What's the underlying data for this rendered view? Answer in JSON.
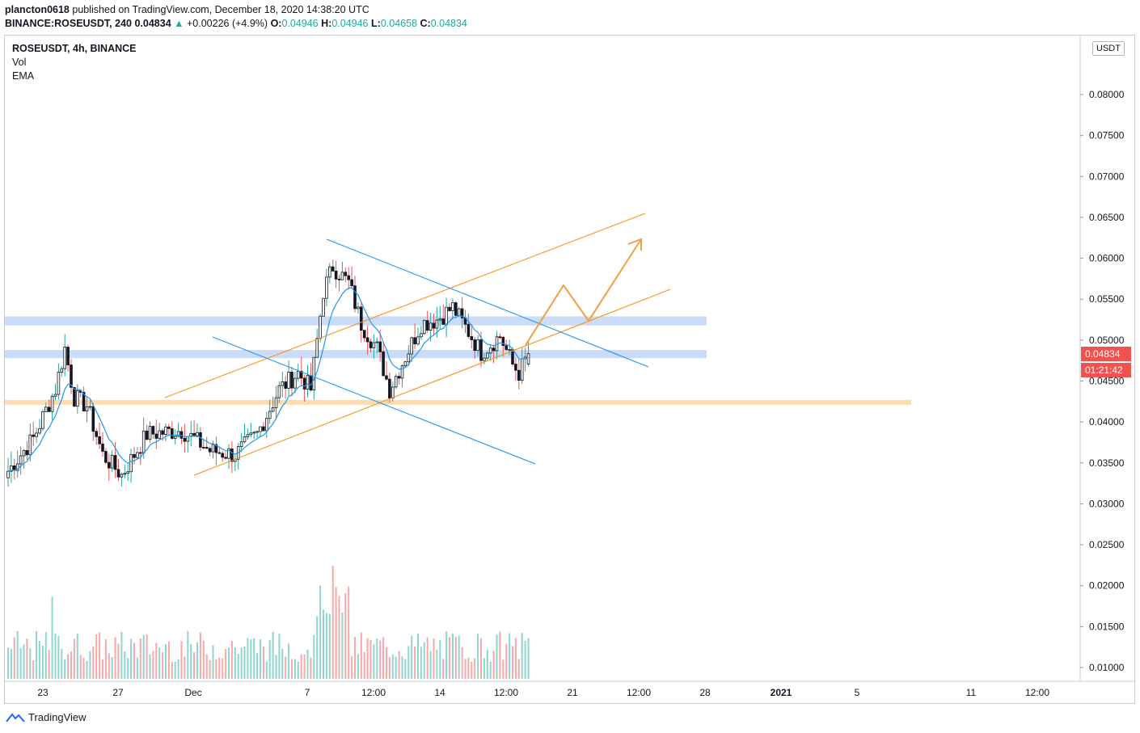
{
  "header": {
    "publisher": "plancton0618",
    "published_text": "published on TradingView.com, December 18, 2020 14:38:20 UTC",
    "symbol_line": "BINANCE:ROSEUSDT, 240",
    "last": "0.04834",
    "change": "+0.00226 (+4.9%)",
    "o_label": "O:",
    "o": "0.04946",
    "h_label": "H:",
    "h": "0.04946",
    "l_label": "L:",
    "l": "0.04658",
    "c_label": "C:",
    "c": "0.04834"
  },
  "legend": {
    "title": "ROSEUSDT, 4h, BINANCE",
    "vol": "Vol",
    "ema": "EMA"
  },
  "price_axis": {
    "currency": "USDT",
    "last_price": "0.04834",
    "countdown": "01:21:42"
  },
  "footer": {
    "brand": "TradingView"
  },
  "colors": {
    "up": "#26a69a",
    "down": "#ef5350",
    "candle_body": "#131722",
    "ema": "#2196f3",
    "channel": "#f7931a",
    "zone_blue": "#c5d8f8",
    "zone_orange": "#fdd8a8",
    "vol_up": "#8fd6cf",
    "vol_down": "#f5a9a9"
  },
  "chart_data": {
    "type": "candlestick",
    "title": "ROSEUSDT, 4h, BINANCE",
    "interval": "4h",
    "currency": "USDT",
    "y_ticks": [
      "0.01000",
      "0.01500",
      "0.02000",
      "0.02500",
      "0.03000",
      "0.03500",
      "0.04000",
      "0.04500",
      "0.05000",
      "0.05500",
      "0.06000",
      "0.06500",
      "0.07000",
      "0.07500",
      "0.08000"
    ],
    "x_ticks": [
      "23",
      "27",
      "Dec",
      "7",
      "12:00",
      "14",
      "12:00",
      "21",
      "12:00",
      "28",
      "2021",
      "5",
      "11",
      "12:00"
    ],
    "ylim": [
      0.0082,
      0.0865
    ],
    "price_anchors": [
      {
        "t": 0,
        "p": 0.034
      },
      {
        "t": 8,
        "p": 0.038
      },
      {
        "t": 15,
        "p": 0.044
      },
      {
        "t": 18,
        "p": 0.049
      },
      {
        "t": 21,
        "p": 0.043
      },
      {
        "t": 25,
        "p": 0.042
      },
      {
        "t": 30,
        "p": 0.036
      },
      {
        "t": 36,
        "p": 0.0335
      },
      {
        "t": 44,
        "p": 0.0385
      },
      {
        "t": 55,
        "p": 0.039
      },
      {
        "t": 64,
        "p": 0.0365
      },
      {
        "t": 72,
        "p": 0.036
      },
      {
        "t": 79,
        "p": 0.0385
      },
      {
        "t": 86,
        "p": 0.044
      },
      {
        "t": 92,
        "p": 0.046
      },
      {
        "t": 96,
        "p": 0.044
      },
      {
        "t": 100,
        "p": 0.056
      },
      {
        "t": 103,
        "p": 0.059
      },
      {
        "t": 108,
        "p": 0.057
      },
      {
        "t": 112,
        "p": 0.052
      },
      {
        "t": 117,
        "p": 0.049
      },
      {
        "t": 121,
        "p": 0.044
      },
      {
        "t": 126,
        "p": 0.048
      },
      {
        "t": 131,
        "p": 0.052
      },
      {
        "t": 136,
        "p": 0.0525
      },
      {
        "t": 141,
        "p": 0.054
      },
      {
        "t": 146,
        "p": 0.051
      },
      {
        "t": 150,
        "p": 0.0485
      },
      {
        "t": 156,
        "p": 0.0505
      },
      {
        "t": 160,
        "p": 0.047
      },
      {
        "t": 162,
        "p": 0.046
      },
      {
        "t": 165,
        "p": 0.0483
      }
    ],
    "support_resistance_zones": [
      {
        "color": "blue",
        "from": 0.0518,
        "to": 0.0529
      },
      {
        "color": "blue",
        "from": 0.0478,
        "to": 0.0488
      },
      {
        "color": "orange",
        "from": 0.0421,
        "to": 0.0427
      }
    ],
    "ema": "EMA overlay (blue)",
    "volume": "Vol histogram (green up / red down)"
  }
}
